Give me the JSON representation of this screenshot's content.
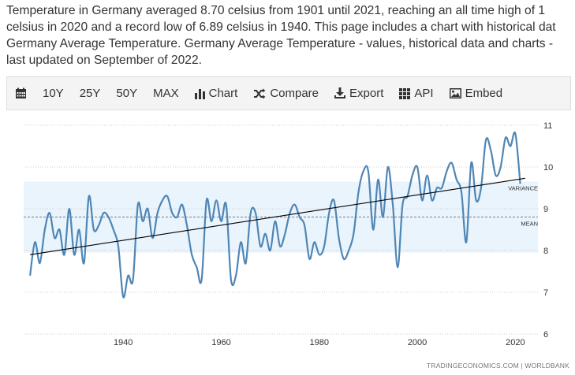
{
  "description": {
    "lines": [
      "Temperature in Germany averaged 8.70 celsius from 1901 until 2021, reaching an all time high of 1",
      "celsius in 2020 and a record low of 6.89 celsius in 1940. This page includes a chart with historical dat",
      "Germany Average Temperature. Germany Average Temperature - values, historical data and charts -",
      "last updated on September of 2022."
    ]
  },
  "toolbar": {
    "items": [
      {
        "id": "calendar",
        "label": "",
        "icon": "calendar-icon"
      },
      {
        "id": "10y",
        "label": "10Y"
      },
      {
        "id": "25y",
        "label": "25Y"
      },
      {
        "id": "50y",
        "label": "50Y"
      },
      {
        "id": "max",
        "label": "MAX"
      },
      {
        "id": "chart",
        "label": "Chart",
        "icon": "bar-chart-icon"
      },
      {
        "id": "compare",
        "label": "Compare",
        "icon": "shuffle-icon"
      },
      {
        "id": "export",
        "label": "Export",
        "icon": "download-icon"
      },
      {
        "id": "api",
        "label": "API",
        "icon": "grid-icon"
      },
      {
        "id": "embed",
        "label": "Embed",
        "icon": "image-icon"
      }
    ]
  },
  "colors": {
    "line": "#4f86b5",
    "trend": "#000000",
    "band": "#eaf4fd",
    "grid": "#cccccc",
    "mean_line": "#555555"
  },
  "chart_data": {
    "type": "line",
    "title": "",
    "xlabel": "",
    "ylabel": "",
    "x_ticks": [
      1940,
      1960,
      1980,
      2000,
      2020
    ],
    "y_ticks": [
      6,
      7,
      8,
      9,
      10,
      11
    ],
    "xlim": [
      1920.5,
      2023
    ],
    "ylim": [
      6,
      11.2
    ],
    "y_axis_side": "right",
    "grid": "horizontal dotted",
    "mean": {
      "label": "MEAN",
      "value": 8.8
    },
    "variance": {
      "label": "VARIANCE",
      "low": 7.95,
      "high": 9.65
    },
    "trend": {
      "x": [
        1921,
        2022
      ],
      "y": [
        7.9,
        9.73
      ]
    },
    "x": [
      1921,
      1922,
      1923,
      1924,
      1925,
      1926,
      1927,
      1928,
      1929,
      1930,
      1931,
      1932,
      1933,
      1934,
      1935,
      1936,
      1937,
      1938,
      1939,
      1940,
      1941,
      1942,
      1943,
      1944,
      1945,
      1946,
      1947,
      1948,
      1949,
      1950,
      1951,
      1952,
      1953,
      1954,
      1955,
      1956,
      1957,
      1958,
      1959,
      1960,
      1961,
      1962,
      1963,
      1964,
      1965,
      1966,
      1967,
      1968,
      1969,
      1970,
      1971,
      1972,
      1973,
      1974,
      1975,
      1976,
      1977,
      1978,
      1979,
      1980,
      1981,
      1982,
      1983,
      1984,
      1985,
      1986,
      1987,
      1988,
      1989,
      1990,
      1991,
      1992,
      1993,
      1994,
      1995,
      1996,
      1997,
      1998,
      1999,
      2000,
      2001,
      2002,
      2003,
      2004,
      2005,
      2006,
      2007,
      2008,
      2009,
      2010,
      2011,
      2012,
      2013,
      2014,
      2015,
      2016,
      2017,
      2018,
      2019,
      2020,
      2021
    ],
    "values": [
      7.4,
      8.2,
      7.7,
      8.5,
      8.9,
      8.3,
      8.5,
      7.9,
      9.0,
      7.9,
      8.5,
      7.7,
      9.3,
      8.5,
      8.6,
      8.9,
      8.8,
      8.5,
      8.1,
      6.89,
      7.4,
      7.3,
      9.1,
      8.7,
      9.0,
      8.3,
      8.9,
      9.2,
      9.3,
      8.9,
      8.8,
      9.1,
      8.6,
      7.9,
      7.6,
      7.3,
      9.2,
      8.7,
      9.2,
      8.7,
      9.1,
      7.3,
      7.4,
      8.2,
      7.7,
      8.9,
      8.9,
      8.1,
      8.4,
      8.0,
      8.7,
      8.1,
      8.4,
      8.9,
      9.1,
      8.8,
      8.6,
      7.8,
      8.2,
      7.9,
      8.1,
      8.9,
      9.2,
      8.3,
      7.8,
      8.0,
      8.4,
      9.4,
      9.9,
      9.9,
      8.5,
      9.7,
      8.8,
      10.0,
      9.1,
      7.6,
      9.1,
      9.3,
      9.8,
      10.0,
      9.2,
      9.8,
      9.2,
      9.5,
      9.5,
      9.9,
      10.1,
      9.7,
      9.4,
      8.2,
      10.1,
      9.2,
      9.5,
      10.65,
      10.4,
      9.8,
      10.0,
      10.7,
      10.5,
      10.8,
      9.6
    ]
  },
  "credit": "TRADINGECONOMICS.COM  |  WORLDBANK"
}
